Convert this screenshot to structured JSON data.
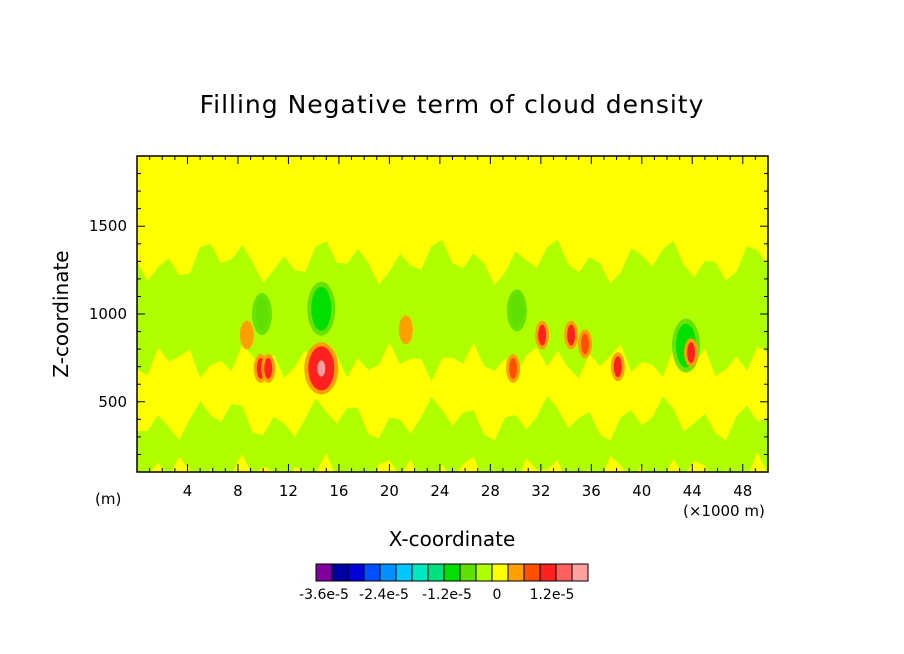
{
  "chart_data": {
    "type": "heatmap",
    "title": "Filling Negative term of cloud density",
    "xlabel": "X-coordinate",
    "ylabel": "Z-coordinate",
    "x_unit_left": "(m)",
    "x_unit_right": "(×1000 m)",
    "xlim": [
      0,
      50
    ],
    "ylim": [
      100,
      1900
    ],
    "x_ticks": [
      4,
      8,
      12,
      16,
      20,
      24,
      28,
      32,
      36,
      40,
      44,
      48
    ],
    "y_ticks": [
      500,
      1000,
      1500
    ],
    "colorbar": {
      "colors": [
        "#8000a0",
        "#0000a0",
        "#0000d8",
        "#0050ff",
        "#0090ff",
        "#00c8ff",
        "#00e8c0",
        "#00e080",
        "#00e000",
        "#60e000",
        "#b0ff00",
        "#ffff00",
        "#ffa000",
        "#ff5000",
        "#ff2020",
        "#ff6060",
        "#ffa0a0"
      ],
      "labels": [
        "-3.6e-5",
        "-2.4e-5",
        "-1.2e-5",
        "0",
        "1.2e-5"
      ]
    },
    "levels": {
      "zero": "#ffff00",
      "weak_negative": "#b0ff00",
      "moderate_negative": "#60e000",
      "strong_negative": "#00e000",
      "weak_positive": "#ffa000",
      "moderate_positive": "#ff5000",
      "strong_positive": "#ff2020",
      "peak_positive": "#ffa0a0"
    },
    "features": [
      {
        "kind": "band",
        "x": [
          0,
          50
        ],
        "z": [
          730,
          1300
        ],
        "level": "weak_negative"
      },
      {
        "kind": "band",
        "x": [
          0,
          50
        ],
        "z": [
          100,
          400
        ],
        "level": "weak_negative"
      },
      {
        "kind": "cell",
        "x": 9.9,
        "z": 1000,
        "level": "moderate_negative"
      },
      {
        "kind": "cell",
        "x": 14.6,
        "z": 1030,
        "level": "strong_negative"
      },
      {
        "kind": "cell",
        "x": 30.1,
        "z": 1020,
        "level": "moderate_negative"
      },
      {
        "kind": "cell",
        "x": 43.5,
        "z": 820,
        "level": "strong_negative"
      },
      {
        "kind": "cell",
        "x": 8.7,
        "z": 880,
        "level": "weak_positive"
      },
      {
        "kind": "cell",
        "x": 9.8,
        "z": 690,
        "level": "strong_positive"
      },
      {
        "kind": "cell",
        "x": 10.4,
        "z": 690,
        "level": "strong_positive"
      },
      {
        "kind": "cell",
        "x": 14.6,
        "z": 690,
        "level": "peak_positive"
      },
      {
        "kind": "cell",
        "x": 29.8,
        "z": 690,
        "level": "moderate_positive"
      },
      {
        "kind": "cell",
        "x": 21.3,
        "z": 910,
        "level": "weak_positive"
      },
      {
        "kind": "cell",
        "x": 32.1,
        "z": 880,
        "level": "strong_positive"
      },
      {
        "kind": "cell",
        "x": 34.4,
        "z": 880,
        "level": "strong_positive"
      },
      {
        "kind": "cell",
        "x": 35.5,
        "z": 830,
        "level": "moderate_positive"
      },
      {
        "kind": "cell",
        "x": 38.1,
        "z": 700,
        "level": "strong_positive"
      },
      {
        "kind": "cell",
        "x": 43.9,
        "z": 780,
        "level": "strong_positive"
      }
    ]
  }
}
